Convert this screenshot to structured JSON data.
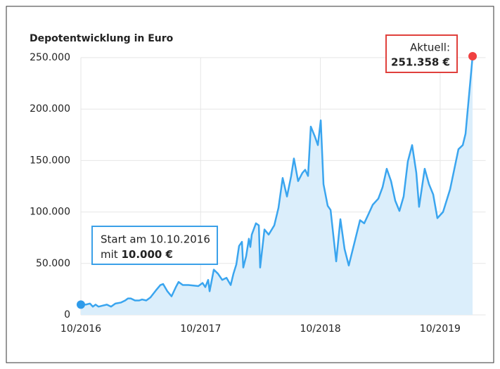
{
  "chart_data": {
    "type": "area",
    "title": "Depotentwicklung in Euro",
    "x": [
      2016.75,
      2016.791,
      2016.826,
      2016.85,
      2016.873,
      2016.897,
      2016.932,
      2016.967,
      2017.002,
      2017.038,
      2017.085,
      2017.12,
      2017.143,
      2017.167,
      2017.202,
      2017.237,
      2017.261,
      2017.296,
      2017.331,
      2017.378,
      2017.414,
      2017.437,
      2017.472,
      2017.507,
      2017.543,
      2017.566,
      2017.601,
      2017.648,
      2017.731,
      2017.766,
      2017.789,
      2017.813,
      2017.825,
      2017.86,
      2017.895,
      2017.93,
      2017.966,
      2018.001,
      2018.024,
      2018.048,
      2018.071,
      2018.095,
      2018.106,
      2018.13,
      2018.153,
      2018.165,
      2018.177,
      2018.212,
      2018.236,
      2018.247,
      2018.283,
      2018.318,
      2018.365,
      2018.4,
      2018.435,
      2018.471,
      2018.506,
      2018.529,
      2018.564,
      2018.6,
      2018.623,
      2018.647,
      2018.67,
      2018.705,
      2018.729,
      2018.753,
      2018.776,
      2018.811,
      2018.835,
      2018.882,
      2018.917,
      2018.952,
      2018.987,
      2019.034,
      2019.081,
      2019.116,
      2019.152,
      2019.187,
      2019.234,
      2019.269,
      2019.304,
      2019.34,
      2019.375,
      2019.41,
      2019.445,
      2019.48,
      2019.516,
      2019.551,
      2019.574,
      2019.621,
      2019.657,
      2019.692,
      2019.727,
      2019.774,
      2019.833,
      2019.903,
      2019.939,
      2019.962,
      2020.021
    ],
    "values": [
      10000,
      10000,
      11000,
      8000,
      10000,
      8000,
      9000,
      10000,
      8000,
      11000,
      12000,
      14000,
      16000,
      16000,
      14000,
      14000,
      15000,
      14000,
      17000,
      24000,
      29000,
      30000,
      23000,
      18000,
      27000,
      32000,
      29000,
      29000,
      28000,
      31000,
      27000,
      34000,
      23000,
      44000,
      40000,
      34000,
      36000,
      29000,
      40000,
      49000,
      67000,
      71000,
      46000,
      57000,
      74000,
      66000,
      78000,
      89000,
      87000,
      46000,
      83000,
      78000,
      87000,
      104000,
      133000,
      115000,
      135000,
      152000,
      130000,
      138000,
      141000,
      135000,
      183000,
      173000,
      165000,
      189000,
      127000,
      106000,
      102000,
      52000,
      93000,
      64000,
      48000,
      70000,
      92000,
      89000,
      98000,
      107000,
      113000,
      124000,
      142000,
      130000,
      111000,
      101000,
      115000,
      149000,
      165000,
      138000,
      105000,
      142000,
      127000,
      117000,
      94000,
      100000,
      122000,
      161000,
      165000,
      176000,
      251358
    ],
    "line_color": "#3aa5ef",
    "fill_color": "#dbeefb",
    "xlim": [
      2016.75,
      2020.13
    ],
    "xticks": [
      {
        "value": 2016.75,
        "label": "10/2016"
      },
      {
        "value": 2017.75,
        "label": "10/2017"
      },
      {
        "value": 2018.75,
        "label": "10/2018"
      },
      {
        "value": 2019.75,
        "label": "10/2019"
      }
    ],
    "ylim": [
      0,
      250000
    ],
    "yticks": [
      0,
      {
        "value": 50000,
        "label": "50.000"
      },
      {
        "value": 100000,
        "label": "100.000"
      },
      {
        "value": 150000,
        "label": "150.000"
      },
      {
        "value": 200000,
        "label": "200.000"
      },
      {
        "value": 250000,
        "label": "250.000"
      }
    ],
    "grid": true,
    "start_annotation": {
      "text": "Start am 10.10.2016",
      "prefix": "mit",
      "value_label": "10.000 €",
      "color": "#3aa0e8"
    },
    "end_annotation": {
      "text": "Aktuell:",
      "value_label": "251.358 €",
      "color": "#e0403c"
    }
  }
}
